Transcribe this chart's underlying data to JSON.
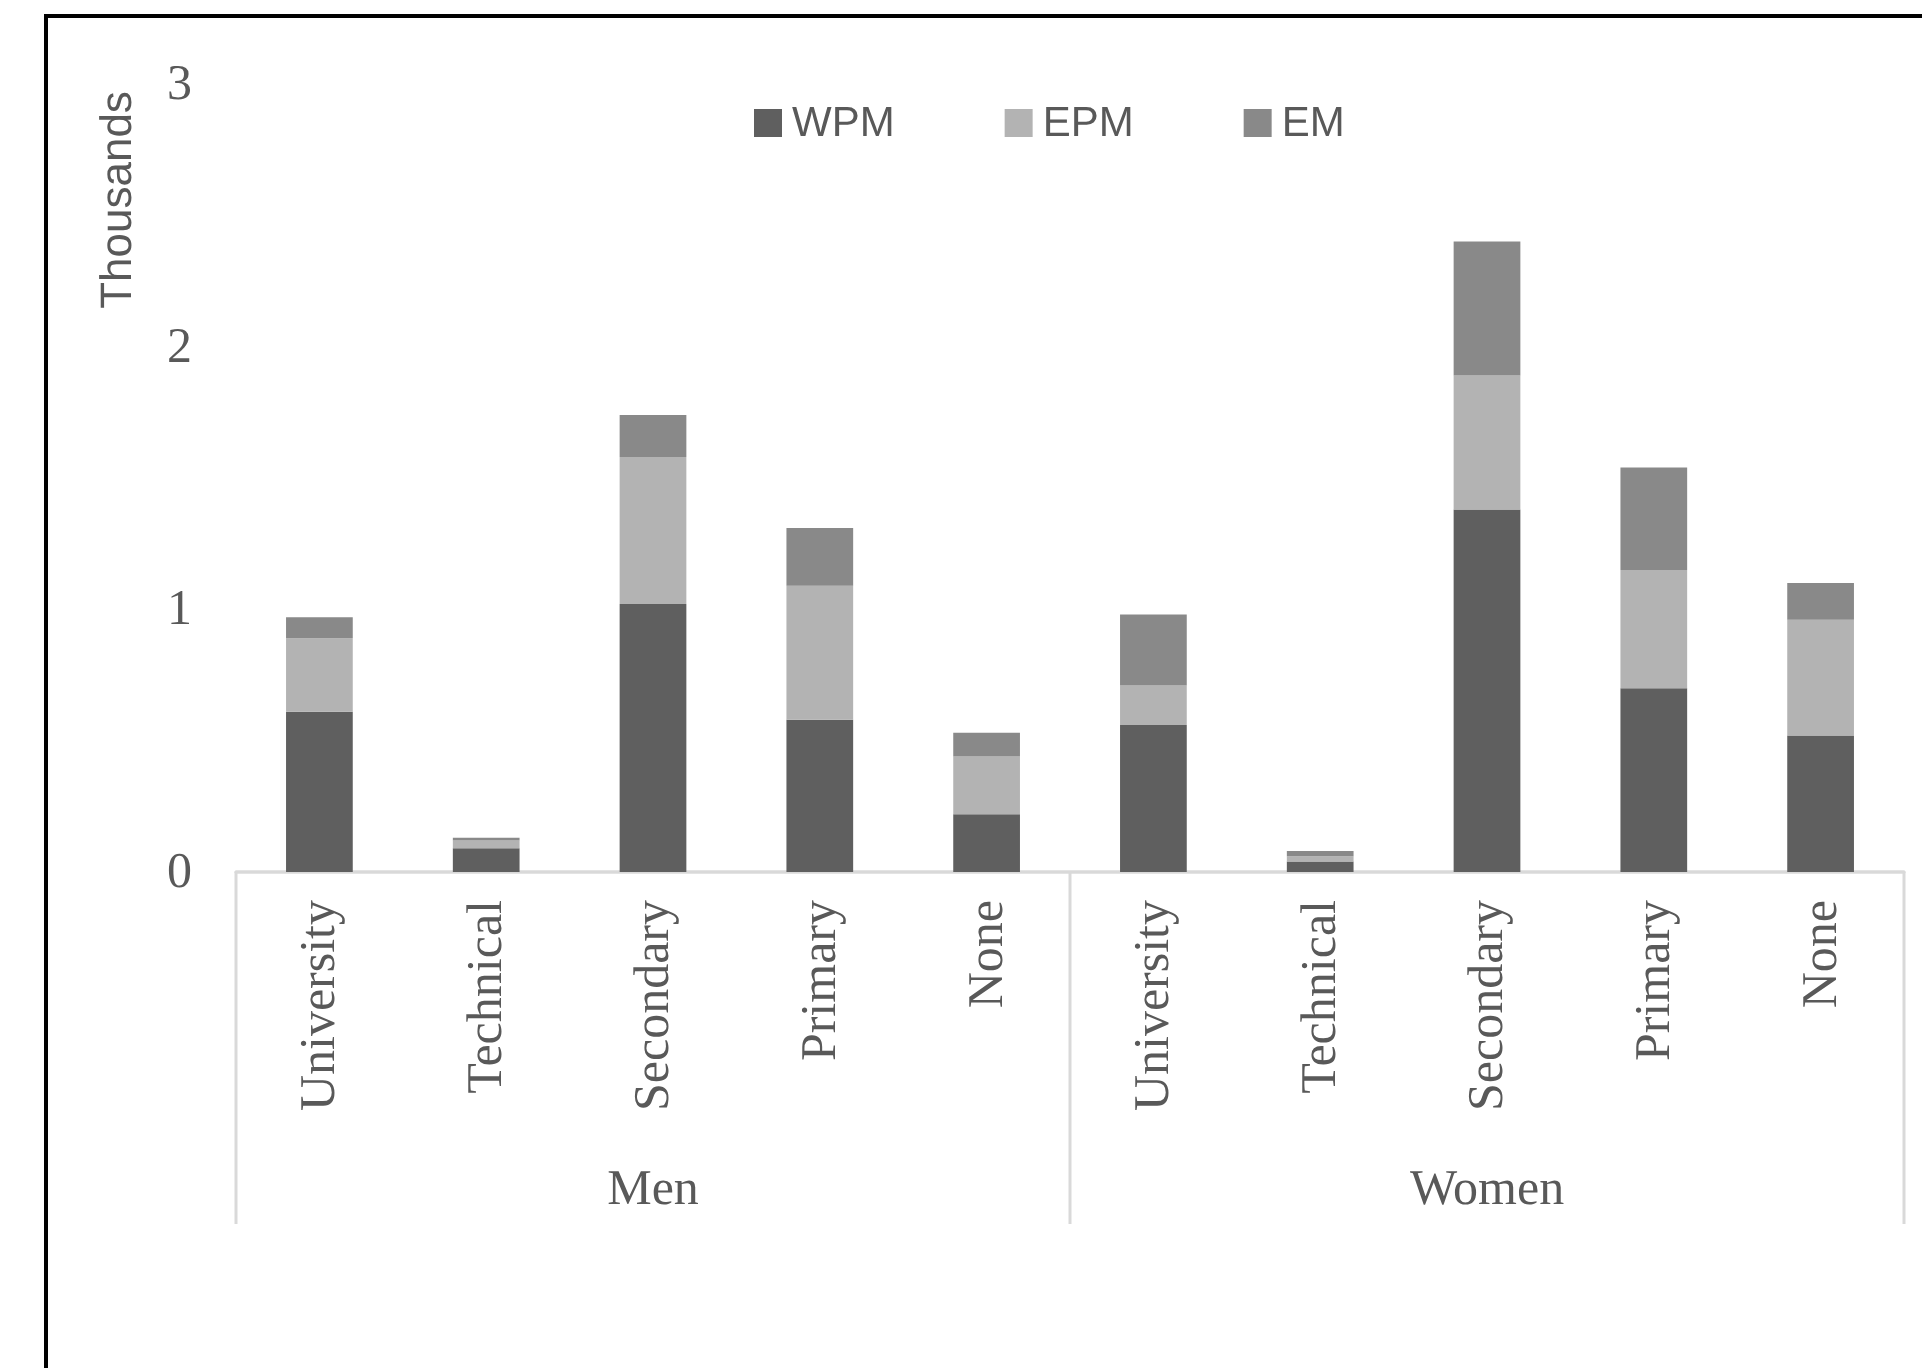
{
  "chart_data": {
    "type": "bar",
    "stacked": true,
    "ylabel": "Thousands",
    "categories": [
      "University",
      "Technical",
      "Secondary",
      "Primary",
      "None",
      "University",
      "Technical",
      "Secondary",
      "Primary",
      "None"
    ],
    "annotations": [
      "Men",
      "Women"
    ],
    "series": [
      {
        "name": "WPM",
        "color": "#5f5f5f",
        "values": [
          0.61,
          0.09,
          1.02,
          0.58,
          0.22,
          0.56,
          0.04,
          1.38,
          0.7,
          0.52
        ]
      },
      {
        "name": "EPM",
        "color": "#b3b3b3",
        "values": [
          0.28,
          0.03,
          0.56,
          0.51,
          0.22,
          0.15,
          0.02,
          0.51,
          0.45,
          0.44
        ]
      },
      {
        "name": "EM",
        "color": "#898989",
        "values": [
          0.08,
          0.01,
          0.16,
          0.22,
          0.09,
          0.27,
          0.02,
          0.51,
          0.39,
          0.14
        ]
      }
    ],
    "ylim": [
      0,
      3
    ],
    "yticks": [
      0,
      1,
      2,
      3
    ],
    "legend": "top"
  }
}
